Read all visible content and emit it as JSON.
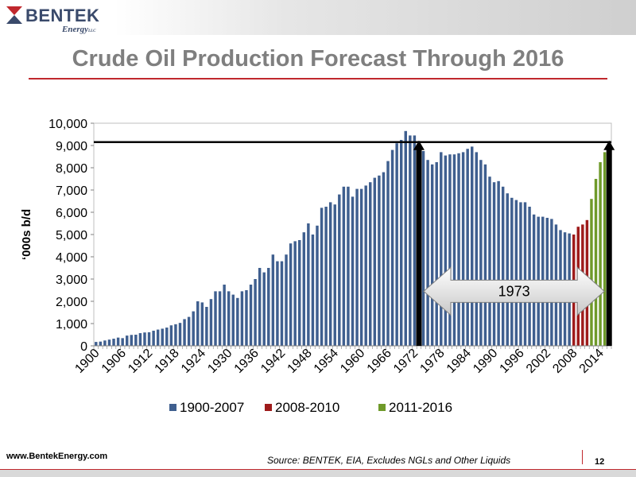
{
  "header": {
    "logo_name": "BENTEK",
    "logo_sub": "Energy",
    "logo_suffix": "LLC",
    "title": "Crude Oil Production Forecast Through 2016"
  },
  "footer": {
    "website": "www.BentekEnergy.com",
    "source": "Source: BENTEK, EIA,  Excludes NGLs and Other Liquids",
    "page_number": "12"
  },
  "colors": {
    "series_1900_2007": "#3f5f8f",
    "series_2008_2010": "#9e1b1b",
    "series_2011_2016": "#6f9a2a",
    "accent_rule": "#c0282d"
  },
  "chart_data": {
    "type": "bar",
    "ylabel": "‘000s b/d",
    "ylim": [
      0,
      10000
    ],
    "yticks": [
      0,
      1000,
      2000,
      3000,
      4000,
      5000,
      6000,
      7000,
      8000,
      9000,
      10000
    ],
    "ytick_labels": [
      "0",
      "1,000",
      "2,000",
      "3,000",
      "4,000",
      "5,000",
      "6,000",
      "7,000",
      "8,000",
      "9,000",
      "10,000"
    ],
    "x_start": 1900,
    "x_end": 2016,
    "xtick_labels": [
      "1900",
      "1906",
      "1912",
      "1918",
      "1924",
      "1930",
      "1936",
      "1942",
      "1948",
      "1954",
      "1960",
      "1966",
      "1972",
      "1978",
      "1984",
      "1990",
      "1996",
      "2002",
      "2008",
      "2014"
    ],
    "grid": false,
    "legend_position": "bottom",
    "series": [
      {
        "name": "1900-2007",
        "color": "#3f5f8f",
        "start_year": 1900,
        "values": [
          175,
          190,
          240,
          280,
          320,
          370,
          345,
          460,
          490,
          500,
          570,
          600,
          610,
          680,
          730,
          770,
          820,
          920,
          970,
          1030,
          1200,
          1300,
          1550,
          2000,
          1950,
          1750,
          2100,
          2450,
          2450,
          2750,
          2450,
          2300,
          2150,
          2450,
          2500,
          2750,
          3000,
          3500,
          3300,
          3500,
          4100,
          3800,
          3800,
          4100,
          4600,
          4700,
          4750,
          5100,
          5500,
          5000,
          5400,
          6200,
          6250,
          6450,
          6350,
          6800,
          7150,
          7150,
          6700,
          7050,
          7050,
          7200,
          7350,
          7550,
          7650,
          7800,
          8300,
          8800,
          9100,
          9250,
          9650,
          9450,
          9450,
          9200,
          8750,
          8350,
          8150,
          8250,
          8700,
          8550,
          8600,
          8600,
          8650,
          8700,
          8850,
          8950,
          8700,
          8350,
          8150,
          7600,
          7350,
          7400,
          7150,
          6850,
          6650,
          6550,
          6450,
          6450,
          6250,
          5900,
          5800,
          5800,
          5750,
          5700,
          5450,
          5200,
          5100,
          5050
        ]
      },
      {
        "name": "2008-2010",
        "color": "#9e1b1b",
        "start_year": 2008,
        "values": [
          5000,
          5350,
          5450,
          5650
        ]
      },
      {
        "name": "2011-2016",
        "color": "#6f9a2a",
        "start_year": 2012,
        "values": [
          6600,
          7500,
          8250,
          8700,
          9000
        ]
      }
    ],
    "reference_line_value": 9150,
    "annotation": {
      "text": "1973",
      "from_year": 1973,
      "to_year": 2016,
      "arrow_value": 2450
    }
  }
}
